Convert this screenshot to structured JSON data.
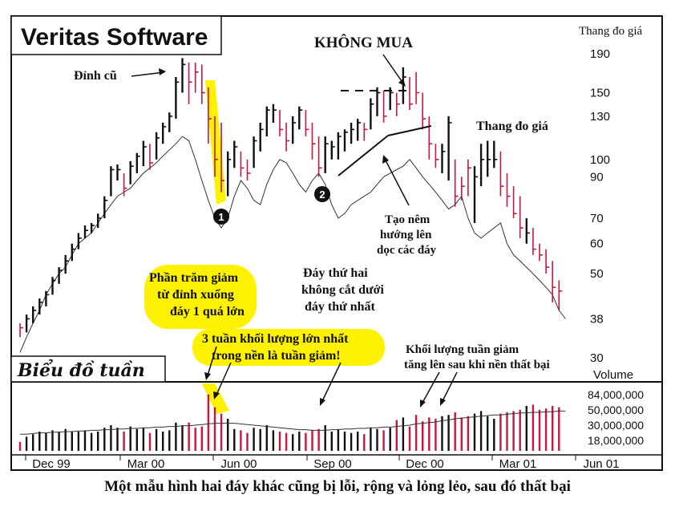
{
  "caption": "Một mẫu hình hai đáy khác cũng bị lỗi, rộng và lỏng lẻo, sau đó thất bại",
  "chart_data": {
    "type": "bar",
    "title": "Veritas Software",
    "subtitle": "Biểu đồ tuần",
    "price_scale_label": "Thang đo giá",
    "volume_label": "Volume",
    "price_ticks": [
      190,
      150,
      130,
      100,
      90,
      70,
      60,
      50,
      38,
      30
    ],
    "volume_ticks": [
      "84,000,000",
      "50,000,000",
      "30,000,000",
      "18,000,000"
    ],
    "x_labels": [
      "Dec 99",
      "Mar 00",
      "Jun 00",
      "Sep 00",
      "Dec 00",
      "Mar 01",
      "Jun 01"
    ],
    "colors": {
      "up": "#111111",
      "down": "#c8163c",
      "highlight": "#fff200",
      "line": "#333333"
    },
    "bars": [
      {
        "hi": 37,
        "lo": 34,
        "close": 36,
        "up": false,
        "vol": 14
      },
      {
        "hi": 39,
        "lo": 35,
        "close": 38,
        "up": true,
        "vol": 22
      },
      {
        "hi": 41,
        "lo": 37,
        "close": 40,
        "up": true,
        "vol": 26
      },
      {
        "hi": 43,
        "lo": 39,
        "close": 42,
        "up": true,
        "vol": 30
      },
      {
        "hi": 45,
        "lo": 41,
        "close": 44,
        "up": true,
        "vol": 28
      },
      {
        "hi": 49,
        "lo": 44,
        "close": 48,
        "up": true,
        "vol": 32
      },
      {
        "hi": 52,
        "lo": 47,
        "close": 51,
        "up": true,
        "vol": 30
      },
      {
        "hi": 56,
        "lo": 50,
        "close": 54,
        "up": true,
        "vol": 34
      },
      {
        "hi": 60,
        "lo": 54,
        "close": 58,
        "up": true,
        "vol": 30
      },
      {
        "hi": 64,
        "lo": 58,
        "close": 62,
        "up": true,
        "vol": 30
      },
      {
        "hi": 67,
        "lo": 62,
        "close": 65,
        "up": true,
        "vol": 32
      },
      {
        "hi": 68,
        "lo": 64,
        "close": 67,
        "up": true,
        "vol": 28
      },
      {
        "hi": 72,
        "lo": 66,
        "close": 70,
        "up": true,
        "vol": 30
      },
      {
        "hi": 80,
        "lo": 70,
        "close": 78,
        "up": true,
        "vol": 36
      },
      {
        "hi": 96,
        "lo": 80,
        "close": 94,
        "up": true,
        "vol": 40
      },
      {
        "hi": 97,
        "lo": 88,
        "close": 94,
        "up": true,
        "vol": 36
      },
      {
        "hi": 92,
        "lo": 80,
        "close": 84,
        "up": false,
        "vol": 30
      },
      {
        "hi": 99,
        "lo": 86,
        "close": 96,
        "up": true,
        "vol": 38
      },
      {
        "hi": 104,
        "lo": 92,
        "close": 102,
        "up": true,
        "vol": 34
      },
      {
        "hi": 112,
        "lo": 96,
        "close": 108,
        "up": true,
        "vol": 36
      },
      {
        "hi": 110,
        "lo": 94,
        "close": 98,
        "up": false,
        "vol": 28
      },
      {
        "hi": 118,
        "lo": 100,
        "close": 114,
        "up": true,
        "vol": 34
      },
      {
        "hi": 125,
        "lo": 110,
        "close": 122,
        "up": true,
        "vol": 30
      },
      {
        "hi": 133,
        "lo": 118,
        "close": 130,
        "up": true,
        "vol": 32
      },
      {
        "hi": 165,
        "lo": 128,
        "close": 160,
        "up": true,
        "vol": 44
      },
      {
        "hi": 185,
        "lo": 150,
        "close": 178,
        "up": true,
        "vol": 40
      },
      {
        "hi": 180,
        "lo": 140,
        "close": 160,
        "up": false,
        "vol": 44
      },
      {
        "hi": 180,
        "lo": 150,
        "close": 170,
        "up": false,
        "vol": 36
      },
      {
        "hi": 178,
        "lo": 140,
        "close": 150,
        "up": false,
        "vol": 38
      },
      {
        "hi": 155,
        "lo": 110,
        "close": 128,
        "up": false,
        "vol": 88
      },
      {
        "hi": 130,
        "lo": 90,
        "close": 100,
        "up": false,
        "vol": 68
      },
      {
        "hi": 125,
        "lo": 82,
        "close": 88,
        "up": false,
        "vol": 58
      },
      {
        "hi": 105,
        "lo": 80,
        "close": 100,
        "up": true,
        "vol": 50
      },
      {
        "hi": 112,
        "lo": 95,
        "close": 108,
        "up": true,
        "vol": 34
      },
      {
        "hi": 105,
        "lo": 90,
        "close": 95,
        "up": false,
        "vol": 32
      },
      {
        "hi": 100,
        "lo": 88,
        "close": 92,
        "up": false,
        "vol": 28
      },
      {
        "hi": 115,
        "lo": 95,
        "close": 112,
        "up": true,
        "vol": 36
      },
      {
        "hi": 125,
        "lo": 105,
        "close": 120,
        "up": true,
        "vol": 34
      },
      {
        "hi": 138,
        "lo": 115,
        "close": 135,
        "up": true,
        "vol": 40
      },
      {
        "hi": 140,
        "lo": 125,
        "close": 135,
        "up": true,
        "vol": 32
      },
      {
        "hi": 135,
        "lo": 115,
        "close": 120,
        "up": false,
        "vol": 30
      },
      {
        "hi": 125,
        "lo": 105,
        "close": 112,
        "up": false,
        "vol": 28
      },
      {
        "hi": 130,
        "lo": 110,
        "close": 125,
        "up": true,
        "vol": 26
      },
      {
        "hi": 138,
        "lo": 120,
        "close": 135,
        "up": true,
        "vol": 30
      },
      {
        "hi": 135,
        "lo": 115,
        "close": 120,
        "up": false,
        "vol": 28
      },
      {
        "hi": 125,
        "lo": 100,
        "close": 110,
        "up": false,
        "vol": 32
      },
      {
        "hi": 115,
        "lo": 90,
        "close": 95,
        "up": false,
        "vol": 34
      },
      {
        "hi": 115,
        "lo": 92,
        "close": 110,
        "up": true,
        "vol": 40
      },
      {
        "hi": 112,
        "lo": 100,
        "close": 108,
        "up": true,
        "vol": 30
      },
      {
        "hi": 118,
        "lo": 100,
        "close": 115,
        "up": true,
        "vol": 34
      },
      {
        "hi": 120,
        "lo": 105,
        "close": 118,
        "up": true,
        "vol": 30
      },
      {
        "hi": 125,
        "lo": 110,
        "close": 120,
        "up": true,
        "vol": 28
      },
      {
        "hi": 128,
        "lo": 112,
        "close": 125,
        "up": true,
        "vol": 30
      },
      {
        "hi": 125,
        "lo": 112,
        "close": 120,
        "up": false,
        "vol": 26
      },
      {
        "hi": 145,
        "lo": 120,
        "close": 140,
        "up": true,
        "vol": 36
      },
      {
        "hi": 155,
        "lo": 130,
        "close": 150,
        "up": true,
        "vol": 34
      },
      {
        "hi": 152,
        "lo": 125,
        "close": 130,
        "up": false,
        "vol": 32
      },
      {
        "hi": 155,
        "lo": 135,
        "close": 150,
        "up": true,
        "vol": 36
      },
      {
        "hi": 150,
        "lo": 130,
        "close": 140,
        "up": false,
        "vol": 48
      },
      {
        "hi": 175,
        "lo": 140,
        "close": 165,
        "up": true,
        "vol": 52
      },
      {
        "hi": 165,
        "lo": 135,
        "close": 140,
        "up": false,
        "vol": 38
      },
      {
        "hi": 170,
        "lo": 140,
        "close": 150,
        "up": false,
        "vol": 56
      },
      {
        "hi": 150,
        "lo": 120,
        "close": 128,
        "up": false,
        "vol": 46
      },
      {
        "hi": 130,
        "lo": 100,
        "close": 110,
        "up": false,
        "vol": 52
      },
      {
        "hi": 110,
        "lo": 95,
        "close": 100,
        "up": false,
        "vol": 50
      },
      {
        "hi": 110,
        "lo": 92,
        "close": 105,
        "up": true,
        "vol": 54
      },
      {
        "hi": 130,
        "lo": 88,
        "close": 125,
        "up": true,
        "vol": 56
      },
      {
        "hi": 100,
        "lo": 75,
        "close": 80,
        "up": false,
        "vol": 60
      },
      {
        "hi": 90,
        "lo": 78,
        "close": 85,
        "up": false,
        "vol": 52
      },
      {
        "hi": 100,
        "lo": 80,
        "close": 95,
        "up": false,
        "vol": 54
      },
      {
        "hi": 96,
        "lo": 68,
        "close": 90,
        "up": true,
        "vol": 58
      },
      {
        "hi": 110,
        "lo": 85,
        "close": 100,
        "up": true,
        "vol": 62
      },
      {
        "hi": 112,
        "lo": 90,
        "close": 100,
        "up": true,
        "vol": 54
      },
      {
        "hi": 112,
        "lo": 95,
        "close": 100,
        "up": true,
        "vol": 50
      },
      {
        "hi": 105,
        "lo": 80,
        "close": 85,
        "up": false,
        "vol": 58
      },
      {
        "hi": 92,
        "lo": 75,
        "close": 80,
        "up": false,
        "vol": 60
      },
      {
        "hi": 85,
        "lo": 70,
        "close": 72,
        "up": false,
        "vol": 62
      },
      {
        "hi": 80,
        "lo": 62,
        "close": 66,
        "up": false,
        "vol": 64
      },
      {
        "hi": 70,
        "lo": 60,
        "close": 64,
        "up": true,
        "vol": 70
      },
      {
        "hi": 66,
        "lo": 56,
        "close": 58,
        "up": false,
        "vol": 72
      },
      {
        "hi": 60,
        "lo": 54,
        "close": 56,
        "up": false,
        "vol": 64
      },
      {
        "hi": 58,
        "lo": 50,
        "close": 52,
        "up": false,
        "vol": 66
      },
      {
        "hi": 54,
        "lo": 42,
        "close": 46,
        "up": false,
        "vol": 70
      },
      {
        "hi": 48,
        "lo": 40,
        "close": 45,
        "up": false,
        "vol": 68
      }
    ],
    "relative_strength_line": [
      31,
      34,
      37,
      40,
      44,
      47,
      50,
      52,
      56,
      60,
      62,
      64,
      68,
      72,
      76,
      80,
      82,
      84,
      88,
      92,
      95,
      98,
      102,
      106,
      110,
      115,
      112,
      100,
      88,
      78,
      70,
      66,
      70,
      80,
      88,
      84,
      78,
      76,
      86,
      94,
      100,
      98,
      92,
      86,
      82,
      88,
      92,
      86,
      76,
      70,
      72,
      76,
      78,
      80,
      82,
      86,
      90,
      92,
      94,
      96,
      100,
      95,
      90,
      86,
      82,
      78,
      74,
      76,
      80,
      70,
      64,
      62,
      64,
      66,
      68,
      60,
      56,
      54,
      52,
      50,
      48,
      46,
      44,
      40,
      38
    ],
    "volume_moving_average": [
      26,
      26,
      27,
      28,
      28,
      29,
      29,
      30,
      30,
      31,
      31,
      32,
      32,
      33,
      33,
      34,
      34,
      35,
      35,
      36,
      36,
      37,
      37,
      38,
      38,
      39,
      39,
      40,
      41,
      42,
      43,
      43,
      43,
      43,
      42,
      41,
      40,
      39,
      38,
      37,
      36,
      35,
      34,
      33,
      33,
      32,
      32,
      32,
      33,
      33,
      34,
      34,
      35,
      35,
      36,
      36,
      37,
      37,
      38,
      39,
      40,
      42,
      43,
      44,
      45,
      47,
      48,
      50,
      51,
      52,
      53,
      54,
      55,
      56,
      56,
      57,
      58,
      59,
      59,
      60,
      60,
      61,
      61,
      62,
      62
    ],
    "annotations": {
      "old_peak": "Đỉnh cũ",
      "no_buy": "KHÔNG MUA",
      "price_scale_note": "Thang đo giá",
      "wedge": [
        "Tạo nêm",
        "hướng lên",
        "dọc các đáy"
      ],
      "decline_pct": [
        "Phần trăm giảm",
        "từ đỉnh xuống",
        "đáy 1 quá lớn"
      ],
      "second_bottom": [
        "Đáy thứ hai",
        "không cắt dưới",
        "đáy thứ nhất"
      ],
      "volume_week": [
        "3 tuần khối lượng lớn nhất",
        "trong nền là tuần giảm!"
      ],
      "volume_rise": [
        "Khối lượng tuần giảm",
        "tăng lên sau khi nền thất bại"
      ],
      "marker_1": "1",
      "marker_2": "2"
    }
  }
}
